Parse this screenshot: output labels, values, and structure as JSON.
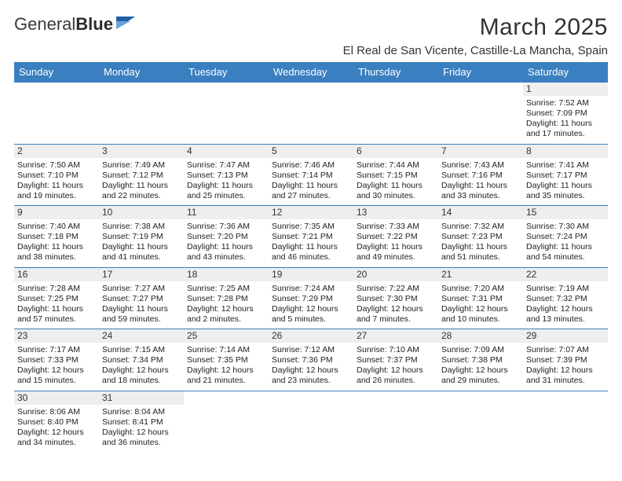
{
  "brand": {
    "name_a": "General",
    "name_b": "Blue"
  },
  "title": "March 2025",
  "location": "El Real de San Vicente, Castille-La Mancha, Spain",
  "colors": {
    "header_bg": "#3a7fc0",
    "header_fg": "#ffffff",
    "cell_border": "#3a7fc0",
    "daynum_bg": "#eeeeee",
    "text": "#222222",
    "logo_accent": "#1f5fa8"
  },
  "weekday_headers": [
    "Sunday",
    "Monday",
    "Tuesday",
    "Wednesday",
    "Thursday",
    "Friday",
    "Saturday"
  ],
  "weeks": [
    [
      null,
      null,
      null,
      null,
      null,
      null,
      {
        "n": "1",
        "rise": "Sunrise: 7:52 AM",
        "set": "Sunset: 7:09 PM",
        "d1": "Daylight: 11 hours",
        "d2": "and 17 minutes."
      }
    ],
    [
      {
        "n": "2",
        "rise": "Sunrise: 7:50 AM",
        "set": "Sunset: 7:10 PM",
        "d1": "Daylight: 11 hours",
        "d2": "and 19 minutes."
      },
      {
        "n": "3",
        "rise": "Sunrise: 7:49 AM",
        "set": "Sunset: 7:12 PM",
        "d1": "Daylight: 11 hours",
        "d2": "and 22 minutes."
      },
      {
        "n": "4",
        "rise": "Sunrise: 7:47 AM",
        "set": "Sunset: 7:13 PM",
        "d1": "Daylight: 11 hours",
        "d2": "and 25 minutes."
      },
      {
        "n": "5",
        "rise": "Sunrise: 7:46 AM",
        "set": "Sunset: 7:14 PM",
        "d1": "Daylight: 11 hours",
        "d2": "and 27 minutes."
      },
      {
        "n": "6",
        "rise": "Sunrise: 7:44 AM",
        "set": "Sunset: 7:15 PM",
        "d1": "Daylight: 11 hours",
        "d2": "and 30 minutes."
      },
      {
        "n": "7",
        "rise": "Sunrise: 7:43 AM",
        "set": "Sunset: 7:16 PM",
        "d1": "Daylight: 11 hours",
        "d2": "and 33 minutes."
      },
      {
        "n": "8",
        "rise": "Sunrise: 7:41 AM",
        "set": "Sunset: 7:17 PM",
        "d1": "Daylight: 11 hours",
        "d2": "and 35 minutes."
      }
    ],
    [
      {
        "n": "9",
        "rise": "Sunrise: 7:40 AM",
        "set": "Sunset: 7:18 PM",
        "d1": "Daylight: 11 hours",
        "d2": "and 38 minutes."
      },
      {
        "n": "10",
        "rise": "Sunrise: 7:38 AM",
        "set": "Sunset: 7:19 PM",
        "d1": "Daylight: 11 hours",
        "d2": "and 41 minutes."
      },
      {
        "n": "11",
        "rise": "Sunrise: 7:36 AM",
        "set": "Sunset: 7:20 PM",
        "d1": "Daylight: 11 hours",
        "d2": "and 43 minutes."
      },
      {
        "n": "12",
        "rise": "Sunrise: 7:35 AM",
        "set": "Sunset: 7:21 PM",
        "d1": "Daylight: 11 hours",
        "d2": "and 46 minutes."
      },
      {
        "n": "13",
        "rise": "Sunrise: 7:33 AM",
        "set": "Sunset: 7:22 PM",
        "d1": "Daylight: 11 hours",
        "d2": "and 49 minutes."
      },
      {
        "n": "14",
        "rise": "Sunrise: 7:32 AM",
        "set": "Sunset: 7:23 PM",
        "d1": "Daylight: 11 hours",
        "d2": "and 51 minutes."
      },
      {
        "n": "15",
        "rise": "Sunrise: 7:30 AM",
        "set": "Sunset: 7:24 PM",
        "d1": "Daylight: 11 hours",
        "d2": "and 54 minutes."
      }
    ],
    [
      {
        "n": "16",
        "rise": "Sunrise: 7:28 AM",
        "set": "Sunset: 7:25 PM",
        "d1": "Daylight: 11 hours",
        "d2": "and 57 minutes."
      },
      {
        "n": "17",
        "rise": "Sunrise: 7:27 AM",
        "set": "Sunset: 7:27 PM",
        "d1": "Daylight: 11 hours",
        "d2": "and 59 minutes."
      },
      {
        "n": "18",
        "rise": "Sunrise: 7:25 AM",
        "set": "Sunset: 7:28 PM",
        "d1": "Daylight: 12 hours",
        "d2": "and 2 minutes."
      },
      {
        "n": "19",
        "rise": "Sunrise: 7:24 AM",
        "set": "Sunset: 7:29 PM",
        "d1": "Daylight: 12 hours",
        "d2": "and 5 minutes."
      },
      {
        "n": "20",
        "rise": "Sunrise: 7:22 AM",
        "set": "Sunset: 7:30 PM",
        "d1": "Daylight: 12 hours",
        "d2": "and 7 minutes."
      },
      {
        "n": "21",
        "rise": "Sunrise: 7:20 AM",
        "set": "Sunset: 7:31 PM",
        "d1": "Daylight: 12 hours",
        "d2": "and 10 minutes."
      },
      {
        "n": "22",
        "rise": "Sunrise: 7:19 AM",
        "set": "Sunset: 7:32 PM",
        "d1": "Daylight: 12 hours",
        "d2": "and 13 minutes."
      }
    ],
    [
      {
        "n": "23",
        "rise": "Sunrise: 7:17 AM",
        "set": "Sunset: 7:33 PM",
        "d1": "Daylight: 12 hours",
        "d2": "and 15 minutes."
      },
      {
        "n": "24",
        "rise": "Sunrise: 7:15 AM",
        "set": "Sunset: 7:34 PM",
        "d1": "Daylight: 12 hours",
        "d2": "and 18 minutes."
      },
      {
        "n": "25",
        "rise": "Sunrise: 7:14 AM",
        "set": "Sunset: 7:35 PM",
        "d1": "Daylight: 12 hours",
        "d2": "and 21 minutes."
      },
      {
        "n": "26",
        "rise": "Sunrise: 7:12 AM",
        "set": "Sunset: 7:36 PM",
        "d1": "Daylight: 12 hours",
        "d2": "and 23 minutes."
      },
      {
        "n": "27",
        "rise": "Sunrise: 7:10 AM",
        "set": "Sunset: 7:37 PM",
        "d1": "Daylight: 12 hours",
        "d2": "and 26 minutes."
      },
      {
        "n": "28",
        "rise": "Sunrise: 7:09 AM",
        "set": "Sunset: 7:38 PM",
        "d1": "Daylight: 12 hours",
        "d2": "and 29 minutes."
      },
      {
        "n": "29",
        "rise": "Sunrise: 7:07 AM",
        "set": "Sunset: 7:39 PM",
        "d1": "Daylight: 12 hours",
        "d2": "and 31 minutes."
      }
    ],
    [
      {
        "n": "30",
        "rise": "Sunrise: 8:06 AM",
        "set": "Sunset: 8:40 PM",
        "d1": "Daylight: 12 hours",
        "d2": "and 34 minutes."
      },
      {
        "n": "31",
        "rise": "Sunrise: 8:04 AM",
        "set": "Sunset: 8:41 PM",
        "d1": "Daylight: 12 hours",
        "d2": "and 36 minutes."
      },
      null,
      null,
      null,
      null,
      null
    ]
  ]
}
